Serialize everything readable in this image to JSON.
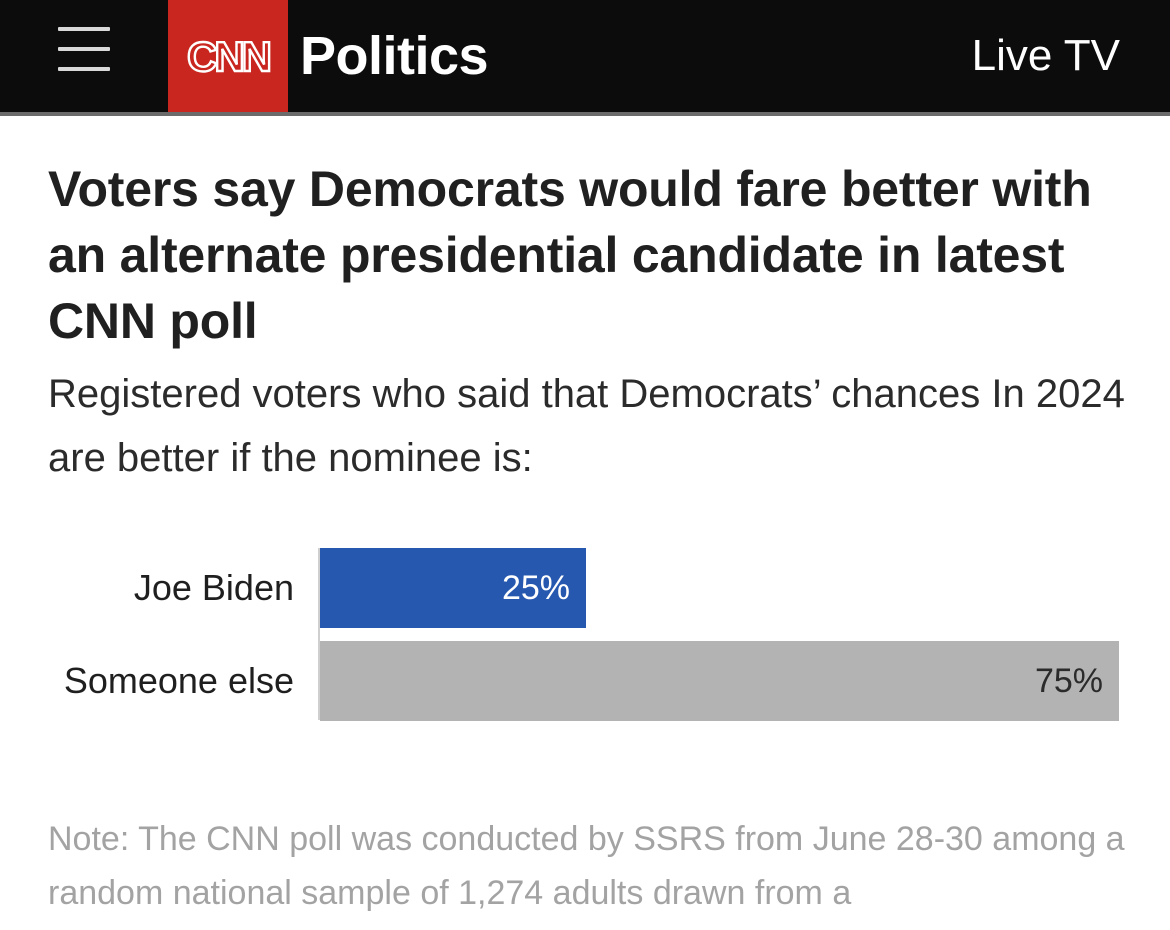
{
  "header": {
    "menu_icon": "hamburger-menu-icon",
    "brand_logo_text": "CNN",
    "brand_color": "#c8261e",
    "section": "Politics",
    "live_tv": "Live TV"
  },
  "article": {
    "headline": "Voters say Democrats would fare better with an alternate presidential candidate in latest CNN poll",
    "subtitle": "Registered voters who said that Democrats’ chances In 2024 are better if the nominee is:",
    "note": "Note: The CNN poll was conducted by SSRS from June 28-30 among a random national sample of 1,274 adults drawn from a"
  },
  "chart_data": {
    "type": "bar",
    "orientation": "horizontal",
    "title": "Voters say Democrats would fare better with an alternate presidential candidate in latest CNN poll",
    "subtitle": "Registered voters who said that Democrats’ chances In 2024 are better if the nominee is:",
    "categories": [
      "Joe Biden",
      "Someone else"
    ],
    "values": [
      25,
      75
    ],
    "value_labels": [
      "25%",
      "75%"
    ],
    "colors": [
      "#2758b0",
      "#b3b3b3"
    ],
    "label_colors": [
      "#ffffff",
      "#2b2b2b"
    ],
    "xlim": [
      0,
      75
    ],
    "unit": "%",
    "grid": false,
    "legend": "none"
  }
}
